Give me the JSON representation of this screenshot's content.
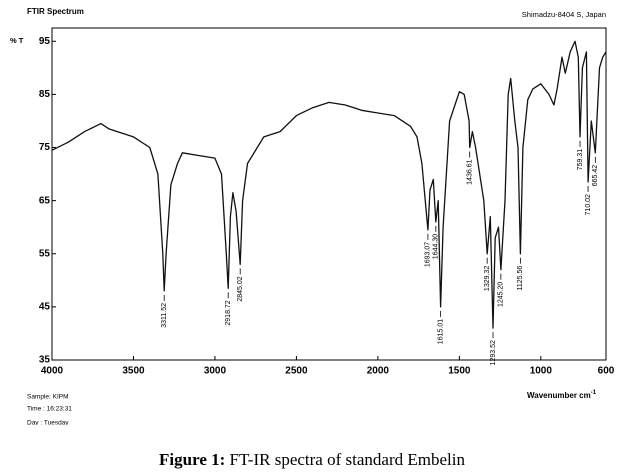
{
  "chart_data": {
    "type": "line",
    "title": "FTIR Spectrum",
    "subtitle": "Shimadzu-8404 S, Japan",
    "y_label": "% T",
    "x_label": "Wavenumber cm",
    "x_label_sup": "-1",
    "info": [
      "Sample: KIPM",
      "Time  :  16:23:31",
      "Day  :  Tuesday"
    ],
    "caption_label": "Figure 1:",
    "caption_text": "FT-IR spectra of standard Embelin",
    "color": "#111111",
    "xlim": [
      4000,
      600
    ],
    "ylim": [
      35,
      97.5
    ],
    "xticks": [
      4000,
      3500,
      3000,
      2500,
      2000,
      1500,
      1000,
      600
    ],
    "yticks": [
      35,
      45,
      55,
      65,
      75,
      85,
      95
    ],
    "x": [
      4000,
      3900,
      3800,
      3700,
      3650,
      3600,
      3500,
      3400,
      3350,
      3320,
      3311.52,
      3300,
      3270,
      3230,
      3200,
      3100,
      3000,
      2960,
      2930,
      2918.72,
      2905,
      2890,
      2870,
      2845.02,
      2830,
      2800,
      2700,
      2600,
      2500,
      2400,
      2300,
      2200,
      2100,
      2000,
      1900,
      1800,
      1760,
      1730,
      1693.07,
      1680,
      1660,
      1644.3,
      1630,
      1615.01,
      1600,
      1560,
      1500,
      1470,
      1440,
      1436.61,
      1420,
      1400,
      1350,
      1329.32,
      1310,
      1293.52,
      1280,
      1260,
      1245.2,
      1220,
      1200,
      1185,
      1160,
      1140,
      1125.56,
      1110,
      1080,
      1050,
      1000,
      950,
      920,
      900,
      870,
      850,
      820,
      790,
      770,
      759.31,
      745,
      720,
      710.02,
      690,
      665.42,
      640,
      620,
      600
    ],
    "values": [
      74.5,
      76,
      78,
      79.5,
      78.5,
      78,
      77,
      75,
      70,
      55,
      48,
      55,
      68,
      72,
      74,
      73.5,
      73,
      70,
      55,
      48.5,
      62,
      66.5,
      63,
      53,
      65,
      72,
      77,
      78,
      81,
      82.5,
      83.5,
      83,
      82,
      81.5,
      81,
      79,
      77,
      72,
      59.5,
      67,
      69,
      61,
      65,
      45,
      60,
      80,
      85.5,
      85,
      80,
      75,
      78,
      75,
      65,
      55,
      62,
      41,
      58,
      60,
      52,
      65,
      85,
      88,
      80,
      75,
      55,
      75,
      84,
      86,
      87,
      85,
      83,
      86,
      92,
      89,
      93,
      95,
      92,
      77,
      90,
      93,
      68.5,
      80,
      74,
      90,
      92,
      93
    ],
    "annotations": [
      {
        "x": 3311.52,
        "label": "3311.52"
      },
      {
        "x": 2918.72,
        "label": "2918.72"
      },
      {
        "x": 2845.02,
        "label": "2845.02"
      },
      {
        "x": 1693.07,
        "label": "1693.07"
      },
      {
        "x": 1644.3,
        "label": "1644.30"
      },
      {
        "x": 1615.01,
        "label": "1615.01"
      },
      {
        "x": 1436.61,
        "label": "1436.61"
      },
      {
        "x": 1329.32,
        "label": "1329.32"
      },
      {
        "x": 1293.52,
        "label": "1293.52"
      },
      {
        "x": 1245.2,
        "label": "1245.20"
      },
      {
        "x": 1125.56,
        "label": "1125.56"
      },
      {
        "x": 759.31,
        "label": "759.31"
      },
      {
        "x": 710.02,
        "label": "710.02"
      },
      {
        "x": 665.42,
        "label": "665.42"
      }
    ]
  }
}
